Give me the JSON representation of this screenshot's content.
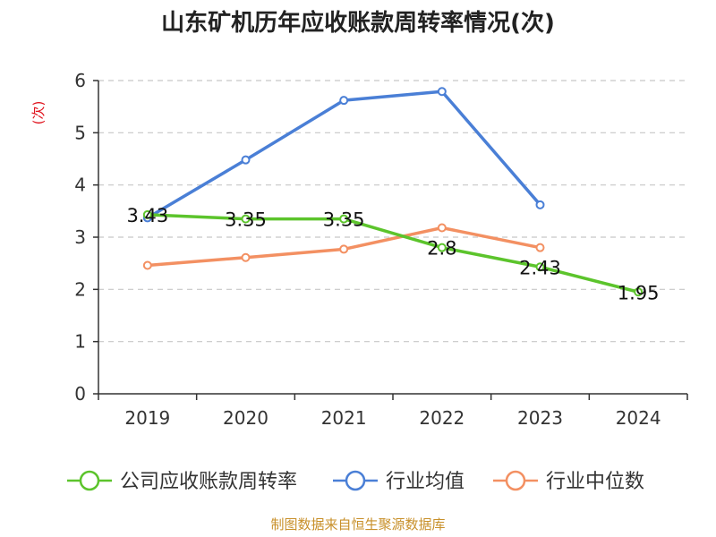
{
  "chart_data": {
    "type": "line",
    "title": "山东矿机历年应收账款周转率情况(次)",
    "ylabel": "(次)",
    "xlabel": "",
    "categories": [
      "2019",
      "2020",
      "2021",
      "2022",
      "2023",
      "2024"
    ],
    "yticks": [
      0,
      1,
      2,
      3,
      4,
      5,
      6
    ],
    "ylim": [
      0,
      6
    ],
    "grid": true,
    "legend_position": "bottom",
    "series": [
      {
        "name": "公司应收账款周转率",
        "color": "#5cc42c",
        "values": [
          3.43,
          3.35,
          3.35,
          2.8,
          2.43,
          1.95
        ],
        "labels": [
          "3.43",
          "3.35",
          "3.35",
          "2.8",
          "2.43",
          "1.95"
        ]
      },
      {
        "name": "行业均值",
        "color": "#4a7fd6",
        "values": [
          3.37,
          4.48,
          5.62,
          5.79,
          3.62,
          null
        ]
      },
      {
        "name": "行业中位数",
        "color": "#f39062",
        "values": [
          2.46,
          2.61,
          2.77,
          3.18,
          2.8,
          null
        ]
      }
    ],
    "source": "制图数据来自恒生聚源数据库"
  }
}
